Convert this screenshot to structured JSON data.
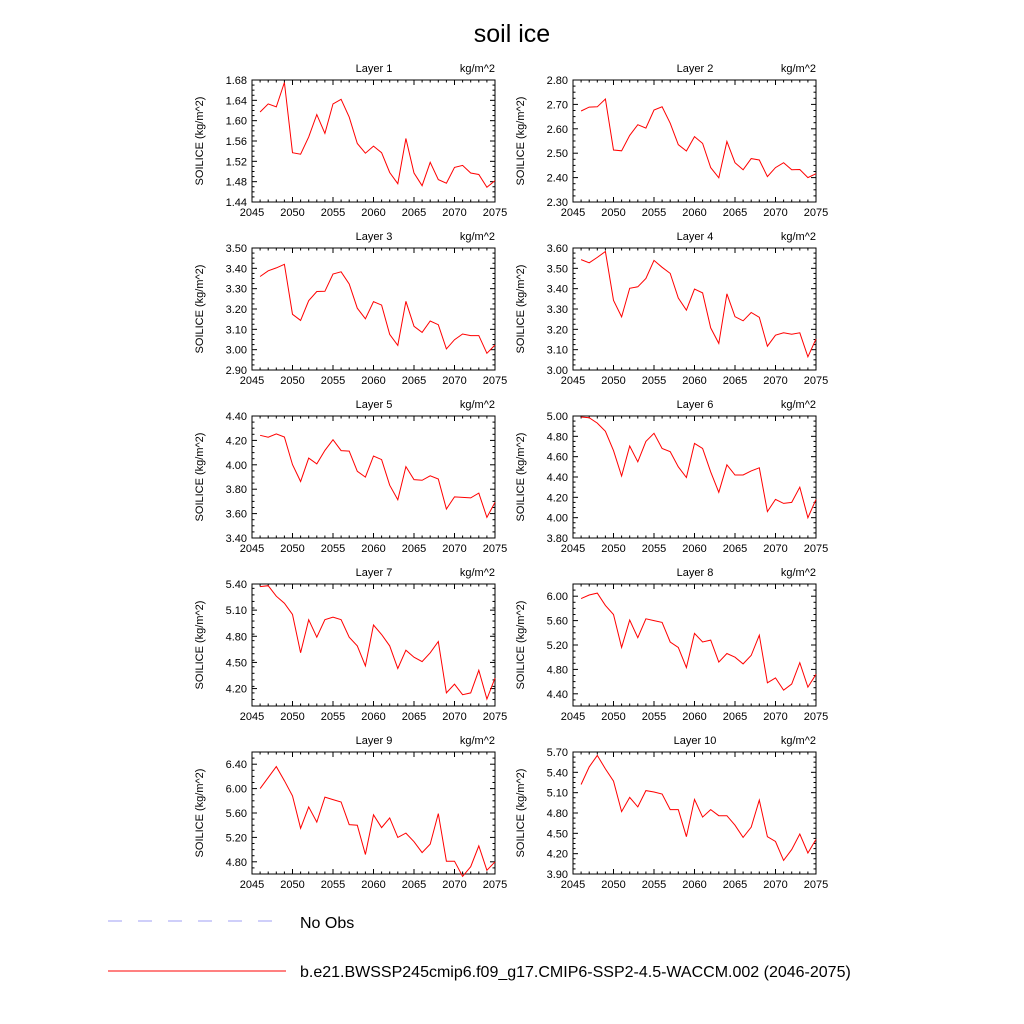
{
  "title": "soil ice",
  "chart_data": [
    {
      "type": "line",
      "title": "Layer 1",
      "units": "kg/m^2",
      "ylabel": "SOILICE  (kg/m^2)",
      "xlim": [
        2045,
        2075
      ],
      "ylim": [
        1.44,
        1.68
      ],
      "xticks": [
        2045,
        2050,
        2055,
        2060,
        2065,
        2070,
        2075
      ],
      "yticks": [
        "1.44",
        "1.48",
        "1.52",
        "1.56",
        "1.60",
        "1.64",
        "1.68"
      ],
      "x": [
        2046,
        2047,
        2048,
        2049,
        2050,
        2051,
        2052,
        2053,
        2054,
        2055,
        2056,
        2057,
        2058,
        2059,
        2060,
        2061,
        2062,
        2063,
        2064,
        2065,
        2066,
        2067,
        2068,
        2069,
        2070,
        2071,
        2072,
        2073,
        2074,
        2075
      ],
      "series": [
        {
          "values": [
            1.617,
            1.633,
            1.627,
            1.675,
            1.537,
            1.534,
            1.568,
            1.612,
            1.575,
            1.633,
            1.642,
            1.607,
            1.555,
            1.536,
            1.55,
            1.537,
            1.498,
            1.476,
            1.565,
            1.497,
            1.472,
            1.518,
            1.484,
            1.477,
            1.508,
            1.512,
            1.497,
            1.494,
            1.469,
            1.482
          ]
        }
      ]
    },
    {
      "type": "line",
      "title": "Layer 2",
      "units": "kg/m^2",
      "ylabel": "SOILICE  (kg/m^2)",
      "xlim": [
        2045,
        2075
      ],
      "ylim": [
        2.3,
        2.8
      ],
      "xticks": [
        2045,
        2050,
        2055,
        2060,
        2065,
        2070,
        2075
      ],
      "yticks": [
        "2.30",
        "2.40",
        "2.50",
        "2.60",
        "2.70",
        "2.80"
      ],
      "x": [
        2046,
        2047,
        2048,
        2049,
        2050,
        2051,
        2052,
        2053,
        2054,
        2055,
        2056,
        2057,
        2058,
        2059,
        2060,
        2061,
        2062,
        2063,
        2064,
        2065,
        2066,
        2067,
        2068,
        2069,
        2070,
        2071,
        2072,
        2073,
        2074,
        2075
      ],
      "series": [
        {
          "values": [
            2.673,
            2.689,
            2.69,
            2.722,
            2.513,
            2.51,
            2.573,
            2.617,
            2.603,
            2.677,
            2.69,
            2.623,
            2.535,
            2.509,
            2.568,
            2.54,
            2.441,
            2.399,
            2.548,
            2.461,
            2.432,
            2.478,
            2.472,
            2.404,
            2.441,
            2.461,
            2.432,
            2.433,
            2.4,
            2.416
          ]
        }
      ]
    },
    {
      "type": "line",
      "title": "Layer 3",
      "units": "kg/m^2",
      "ylabel": "SOILICE  (kg/m^2)",
      "xlim": [
        2045,
        2075
      ],
      "ylim": [
        2.9,
        3.5
      ],
      "xticks": [
        2045,
        2050,
        2055,
        2060,
        2065,
        2070,
        2075
      ],
      "yticks": [
        "2.90",
        "3.00",
        "3.10",
        "3.20",
        "3.30",
        "3.40",
        "3.50"
      ],
      "x": [
        2046,
        2047,
        2048,
        2049,
        2050,
        2051,
        2052,
        2053,
        2054,
        2055,
        2056,
        2057,
        2058,
        2059,
        2060,
        2061,
        2062,
        2063,
        2064,
        2065,
        2066,
        2067,
        2068,
        2069,
        2070,
        2071,
        2072,
        2073,
        2074,
        2075
      ],
      "series": [
        {
          "values": [
            3.36,
            3.388,
            3.402,
            3.42,
            3.174,
            3.144,
            3.241,
            3.286,
            3.287,
            3.372,
            3.383,
            3.323,
            3.204,
            3.152,
            3.236,
            3.219,
            3.075,
            3.021,
            3.238,
            3.115,
            3.085,
            3.141,
            3.123,
            3.004,
            3.049,
            3.077,
            3.069,
            3.069,
            2.982,
            3.023
          ]
        }
      ]
    },
    {
      "type": "line",
      "title": "Layer 4",
      "units": "kg/m^2",
      "ylabel": "SOILICE  (kg/m^2)",
      "xlim": [
        2045,
        2075
      ],
      "ylim": [
        3.0,
        3.6
      ],
      "xticks": [
        2045,
        2050,
        2055,
        2060,
        2065,
        2070,
        2075
      ],
      "yticks": [
        "3.00",
        "3.10",
        "3.20",
        "3.30",
        "3.40",
        "3.50",
        "3.60"
      ],
      "x": [
        2046,
        2047,
        2048,
        2049,
        2050,
        2051,
        2052,
        2053,
        2054,
        2055,
        2056,
        2057,
        2058,
        2059,
        2060,
        2061,
        2062,
        2063,
        2064,
        2065,
        2066,
        2067,
        2068,
        2069,
        2070,
        2071,
        2072,
        2073,
        2074,
        2075
      ],
      "series": [
        {
          "values": [
            3.543,
            3.527,
            3.554,
            3.583,
            3.343,
            3.261,
            3.402,
            3.409,
            3.45,
            3.539,
            3.505,
            3.475,
            3.354,
            3.294,
            3.398,
            3.379,
            3.207,
            3.131,
            3.375,
            3.262,
            3.242,
            3.283,
            3.259,
            3.117,
            3.171,
            3.183,
            3.176,
            3.183,
            3.065,
            3.153
          ]
        }
      ]
    },
    {
      "type": "line",
      "title": "Layer 5",
      "units": "kg/m^2",
      "ylabel": "SOILICE  (kg/m^2)",
      "xlim": [
        2045,
        2075
      ],
      "ylim": [
        3.4,
        4.4
      ],
      "xticks": [
        2045,
        2050,
        2055,
        2060,
        2065,
        2070,
        2075
      ],
      "yticks": [
        "3.40",
        "3.60",
        "3.80",
        "4.00",
        "4.20",
        "4.40"
      ],
      "x": [
        2046,
        2047,
        2048,
        2049,
        2050,
        2051,
        2052,
        2053,
        2054,
        2055,
        2056,
        2057,
        2058,
        2059,
        2060,
        2061,
        2062,
        2063,
        2064,
        2065,
        2066,
        2067,
        2068,
        2069,
        2070,
        2071,
        2072,
        2073,
        2074,
        2075
      ],
      "series": [
        {
          "values": [
            4.242,
            4.226,
            4.253,
            4.228,
            4.002,
            3.863,
            4.055,
            4.007,
            4.118,
            4.206,
            4.116,
            4.112,
            3.947,
            3.899,
            4.072,
            4.043,
            3.833,
            3.713,
            3.985,
            3.879,
            3.873,
            3.91,
            3.884,
            3.638,
            3.737,
            3.733,
            3.729,
            3.768,
            3.569,
            3.693
          ]
        }
      ]
    },
    {
      "type": "line",
      "title": "Layer 6",
      "units": "kg/m^2",
      "ylabel": "SOILICE  (kg/m^2)",
      "xlim": [
        2045,
        2075
      ],
      "ylim": [
        3.8,
        5.0
      ],
      "xticks": [
        2045,
        2050,
        2055,
        2060,
        2065,
        2070,
        2075
      ],
      "yticks": [
        "3.80",
        "4.00",
        "4.20",
        "4.40",
        "4.60",
        "4.80",
        "5.00"
      ],
      "x": [
        2046,
        2047,
        2048,
        2049,
        2050,
        2051,
        2052,
        2053,
        2054,
        2055,
        2056,
        2057,
        2058,
        2059,
        2060,
        2061,
        2062,
        2063,
        2064,
        2065,
        2066,
        2067,
        2068,
        2069,
        2070,
        2071,
        2072,
        2073,
        2074,
        2075
      ],
      "series": [
        {
          "values": [
            4.99,
            4.983,
            4.93,
            4.85,
            4.66,
            4.41,
            4.705,
            4.55,
            4.75,
            4.83,
            4.68,
            4.65,
            4.5,
            4.395,
            4.73,
            4.68,
            4.45,
            4.25,
            4.52,
            4.42,
            4.42,
            4.46,
            4.49,
            4.06,
            4.18,
            4.14,
            4.15,
            4.3,
            4.0,
            4.18
          ]
        }
      ]
    },
    {
      "type": "line",
      "title": "Layer 7",
      "units": "kg/m^2",
      "ylabel": "SOILICE  (kg/m^2)",
      "xlim": [
        2045,
        2075
      ],
      "ylim": [
        4.0,
        5.4
      ],
      "xticks": [
        2045,
        2050,
        2055,
        2060,
        2065,
        2070,
        2075
      ],
      "yticks": [
        "4.20",
        "4.50",
        "4.80",
        "5.10",
        "5.40"
      ],
      "x": [
        2046,
        2047,
        2048,
        2049,
        2050,
        2051,
        2052,
        2053,
        2054,
        2055,
        2056,
        2057,
        2058,
        2059,
        2060,
        2061,
        2062,
        2063,
        2064,
        2065,
        2066,
        2067,
        2068,
        2069,
        2070,
        2071,
        2072,
        2073,
        2074,
        2075
      ],
      "series": [
        {
          "values": [
            5.37,
            5.38,
            5.26,
            5.18,
            5.05,
            4.61,
            4.99,
            4.79,
            4.99,
            5.02,
            4.99,
            4.79,
            4.69,
            4.46,
            4.93,
            4.82,
            4.69,
            4.43,
            4.64,
            4.56,
            4.51,
            4.61,
            4.74,
            4.15,
            4.25,
            4.13,
            4.15,
            4.41,
            4.08,
            4.32
          ]
        }
      ]
    },
    {
      "type": "line",
      "title": "Layer 8",
      "units": "kg/m^2",
      "ylabel": "SOILICE  (kg/m^2)",
      "xlim": [
        2045,
        2075
      ],
      "ylim": [
        4.2,
        6.2
      ],
      "xticks": [
        2045,
        2050,
        2055,
        2060,
        2065,
        2070,
        2075
      ],
      "yticks": [
        "4.40",
        "4.80",
        "5.20",
        "5.60",
        "6.00"
      ],
      "x": [
        2046,
        2047,
        2048,
        2049,
        2050,
        2051,
        2052,
        2053,
        2054,
        2055,
        2056,
        2057,
        2058,
        2059,
        2060,
        2061,
        2062,
        2063,
        2064,
        2065,
        2066,
        2067,
        2068,
        2069,
        2070,
        2071,
        2072,
        2073,
        2074,
        2075
      ],
      "series": [
        {
          "values": [
            5.96,
            6.02,
            6.05,
            5.85,
            5.7,
            5.16,
            5.61,
            5.32,
            5.63,
            5.6,
            5.57,
            5.25,
            5.16,
            4.83,
            5.39,
            5.25,
            5.28,
            4.92,
            5.06,
            5.0,
            4.89,
            5.03,
            5.36,
            4.58,
            4.66,
            4.46,
            4.56,
            4.91,
            4.51,
            4.72
          ]
        }
      ]
    },
    {
      "type": "line",
      "title": "Layer 9",
      "units": "kg/m^2",
      "ylabel": "SOILICE  (kg/m^2)",
      "xlim": [
        2045,
        2075
      ],
      "ylim": [
        4.6,
        6.6
      ],
      "xticks": [
        2045,
        2050,
        2055,
        2060,
        2065,
        2070,
        2075
      ],
      "yticks": [
        "4.80",
        "5.20",
        "5.60",
        "6.00",
        "6.40"
      ],
      "x": [
        2046,
        2047,
        2048,
        2049,
        2050,
        2051,
        2052,
        2053,
        2054,
        2055,
        2056,
        2057,
        2058,
        2059,
        2060,
        2061,
        2062,
        2063,
        2064,
        2065,
        2066,
        2067,
        2068,
        2069,
        2070,
        2071,
        2072,
        2073,
        2074,
        2075
      ],
      "series": [
        {
          "values": [
            6.0,
            6.18,
            6.36,
            6.13,
            5.88,
            5.35,
            5.7,
            5.45,
            5.86,
            5.82,
            5.78,
            5.41,
            5.4,
            4.92,
            5.57,
            5.36,
            5.52,
            5.2,
            5.27,
            5.13,
            4.95,
            5.09,
            5.59,
            4.81,
            4.81,
            4.56,
            4.72,
            5.06,
            4.66,
            4.8
          ]
        }
      ]
    },
    {
      "type": "line",
      "title": "Layer 10",
      "units": "kg/m^2",
      "ylabel": "SOILICE  (kg/m^2)",
      "xlim": [
        2045,
        2075
      ],
      "ylim": [
        3.9,
        5.7
      ],
      "xticks": [
        2045,
        2050,
        2055,
        2060,
        2065,
        2070,
        2075
      ],
      "yticks": [
        "3.90",
        "4.20",
        "4.50",
        "4.80",
        "5.10",
        "5.40",
        "5.70"
      ],
      "x": [
        2046,
        2047,
        2048,
        2049,
        2050,
        2051,
        2052,
        2053,
        2054,
        2055,
        2056,
        2057,
        2058,
        2059,
        2060,
        2061,
        2062,
        2063,
        2064,
        2065,
        2066,
        2067,
        2068,
        2069,
        2070,
        2071,
        2072,
        2073,
        2074,
        2075
      ],
      "series": [
        {
          "values": [
            5.22,
            5.48,
            5.65,
            5.45,
            5.27,
            4.82,
            5.03,
            4.89,
            5.13,
            5.11,
            5.08,
            4.85,
            4.85,
            4.45,
            5.0,
            4.74,
            4.85,
            4.76,
            4.76,
            4.62,
            4.44,
            4.59,
            4.99,
            4.45,
            4.38,
            4.1,
            4.26,
            4.49,
            4.21,
            4.41
          ]
        }
      ]
    }
  ],
  "legend": [
    {
      "label": "No Obs",
      "style": "dashed",
      "color": "#9f9ff5"
    },
    {
      "label": "b.e21.BWSSP245cmip6.f09_g17.CMIP6-SSP2-4.5-WACCM.002 (2046-2075)",
      "style": "solid",
      "color": "#ff0000"
    }
  ],
  "line_color": "#ff0000"
}
